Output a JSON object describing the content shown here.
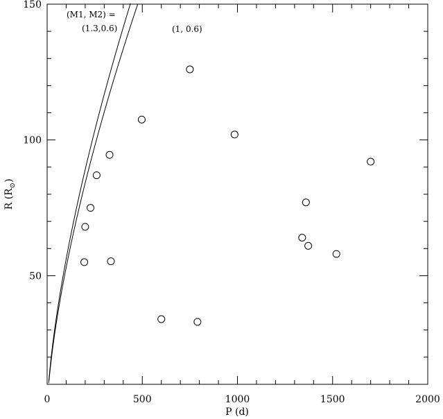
{
  "chart_data": {
    "type": "scatter",
    "xlabel": "P (d)",
    "ylabel": "R (R",
    "ylabel_sub": "⊙",
    "ylabel_close": ")",
    "xlim": [
      0,
      2000
    ],
    "ylim": [
      10,
      150
    ],
    "x_ticks": [
      0,
      500,
      1000,
      1500,
      2000
    ],
    "y_ticks": [
      50,
      100,
      150
    ],
    "x_minor_step": 100,
    "y_minor_step": 10,
    "grid": false,
    "points": [
      {
        "x": 195,
        "y": 55
      },
      {
        "x": 200,
        "y": 68
      },
      {
        "x": 228,
        "y": 75
      },
      {
        "x": 260,
        "y": 87
      },
      {
        "x": 328,
        "y": 94.5
      },
      {
        "x": 335,
        "y": 55.3
      },
      {
        "x": 497,
        "y": 107.5
      },
      {
        "x": 600,
        "y": 34
      },
      {
        "x": 750,
        "y": 126
      },
      {
        "x": 790,
        "y": 33
      },
      {
        "x": 985,
        "y": 102
      },
      {
        "x": 1340,
        "y": 64
      },
      {
        "x": 1360,
        "y": 77
      },
      {
        "x": 1372,
        "y": 61
      },
      {
        "x": 1520,
        "y": 58
      },
      {
        "x": 1700,
        "y": 92
      }
    ],
    "curves": [
      {
        "label_line1": "(M1, M2) =",
        "label_line2": "(1.3,0.6)",
        "mass_sum": 1.9,
        "x_max": 510
      },
      {
        "label_line1": "(1, 0.6)",
        "label_line2": "",
        "mass_sum": 1.6,
        "x_max": 600
      }
    ]
  }
}
